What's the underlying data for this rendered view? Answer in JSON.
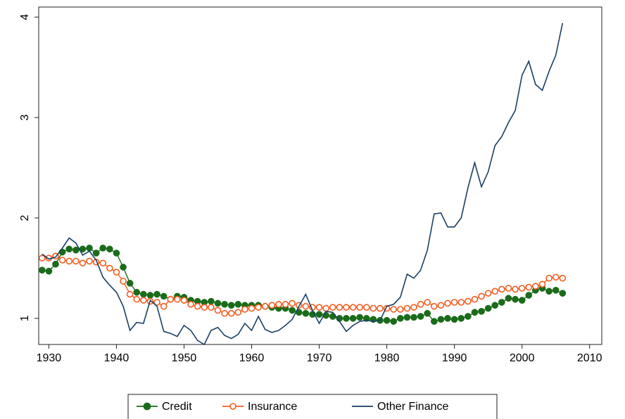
{
  "chart_data": {
    "type": "line",
    "x": [
      1929,
      1930,
      1931,
      1932,
      1933,
      1934,
      1935,
      1936,
      1937,
      1938,
      1939,
      1940,
      1941,
      1942,
      1943,
      1944,
      1945,
      1946,
      1947,
      1948,
      1949,
      1950,
      1951,
      1952,
      1953,
      1954,
      1955,
      1956,
      1957,
      1958,
      1959,
      1960,
      1961,
      1962,
      1963,
      1964,
      1965,
      1966,
      1967,
      1968,
      1969,
      1970,
      1971,
      1972,
      1973,
      1974,
      1975,
      1976,
      1977,
      1978,
      1979,
      1980,
      1981,
      1982,
      1983,
      1984,
      1985,
      1986,
      1987,
      1988,
      1989,
      1990,
      1991,
      1992,
      1993,
      1994,
      1995,
      1996,
      1997,
      1998,
      1999,
      2000,
      2001,
      2002,
      2003,
      2004,
      2005,
      2006
    ],
    "series": [
      {
        "name": "Credit",
        "color": "#1a6b1a",
        "marker": "filled",
        "values": [
          1.48,
          1.47,
          1.54,
          1.66,
          1.69,
          1.68,
          1.69,
          1.7,
          1.65,
          1.7,
          1.69,
          1.65,
          1.51,
          1.35,
          1.26,
          1.24,
          1.23,
          1.24,
          1.22,
          1.19,
          1.22,
          1.21,
          1.18,
          1.17,
          1.16,
          1.17,
          1.15,
          1.14,
          1.13,
          1.14,
          1.13,
          1.13,
          1.13,
          1.12,
          1.11,
          1.1,
          1.1,
          1.08,
          1.06,
          1.05,
          1.04,
          1.04,
          1.03,
          1.02,
          1.0,
          1.0,
          1.0,
          1.01,
          1.0,
          0.99,
          0.98,
          0.98,
          0.97,
          1.0,
          1.01,
          1.01,
          1.02,
          1.05,
          0.97,
          0.99,
          1.0,
          0.99,
          1.0,
          1.02,
          1.06,
          1.07,
          1.1,
          1.13,
          1.16,
          1.2,
          1.19,
          1.18,
          1.23,
          1.28,
          1.3,
          1.27,
          1.28,
          1.25
        ]
      },
      {
        "name": "Insurance",
        "color": "#f25c1f",
        "marker": "hollow",
        "values": [
          1.6,
          1.6,
          1.62,
          1.58,
          1.57,
          1.57,
          1.55,
          1.57,
          1.56,
          1.55,
          1.5,
          1.46,
          1.37,
          1.24,
          1.19,
          1.18,
          1.17,
          1.16,
          1.12,
          1.19,
          1.19,
          1.18,
          1.14,
          1.12,
          1.11,
          1.11,
          1.08,
          1.05,
          1.05,
          1.06,
          1.09,
          1.1,
          1.11,
          1.12,
          1.13,
          1.14,
          1.14,
          1.15,
          1.13,
          1.12,
          1.11,
          1.11,
          1.1,
          1.11,
          1.11,
          1.11,
          1.11,
          1.11,
          1.11,
          1.1,
          1.1,
          1.1,
          1.09,
          1.09,
          1.1,
          1.11,
          1.14,
          1.16,
          1.12,
          1.13,
          1.15,
          1.16,
          1.16,
          1.17,
          1.19,
          1.22,
          1.25,
          1.27,
          1.29,
          1.3,
          1.29,
          1.3,
          1.31,
          1.32,
          1.34,
          1.4,
          1.41,
          1.4
        ]
      },
      {
        "name": "Other Finance",
        "color": "#1a3f63",
        "marker": "none",
        "values": [
          1.64,
          1.59,
          1.61,
          1.7,
          1.8,
          1.75,
          1.63,
          1.67,
          1.58,
          1.41,
          1.33,
          1.26,
          1.12,
          0.88,
          0.96,
          0.95,
          1.18,
          1.12,
          0.87,
          0.85,
          0.82,
          0.93,
          0.88,
          0.78,
          0.74,
          0.88,
          0.91,
          0.83,
          0.8,
          0.84,
          0.95,
          0.88,
          1.02,
          0.89,
          0.86,
          0.88,
          0.93,
          0.99,
          1.12,
          1.24,
          1.08,
          0.95,
          1.07,
          1.06,
          0.97,
          0.87,
          0.93,
          0.97,
          0.98,
          0.97,
          0.98,
          1.12,
          1.14,
          1.21,
          1.44,
          1.4,
          1.48,
          1.68,
          2.04,
          2.05,
          1.91,
          1.91,
          2.0,
          2.3,
          2.55,
          2.31,
          2.46,
          2.72,
          2.81,
          2.95,
          3.07,
          3.42,
          3.56,
          3.33,
          3.27,
          3.46,
          3.62,
          3.94
        ]
      }
    ],
    "xlim": [
      1928.5,
      2011.8
    ],
    "xticks": [
      1930,
      1940,
      1950,
      1960,
      1970,
      1980,
      1990,
      2000,
      2010
    ],
    "ylim": [
      0.74,
      4.1
    ],
    "yticks": [
      1,
      2,
      3,
      4
    ],
    "legend": "bottom"
  }
}
